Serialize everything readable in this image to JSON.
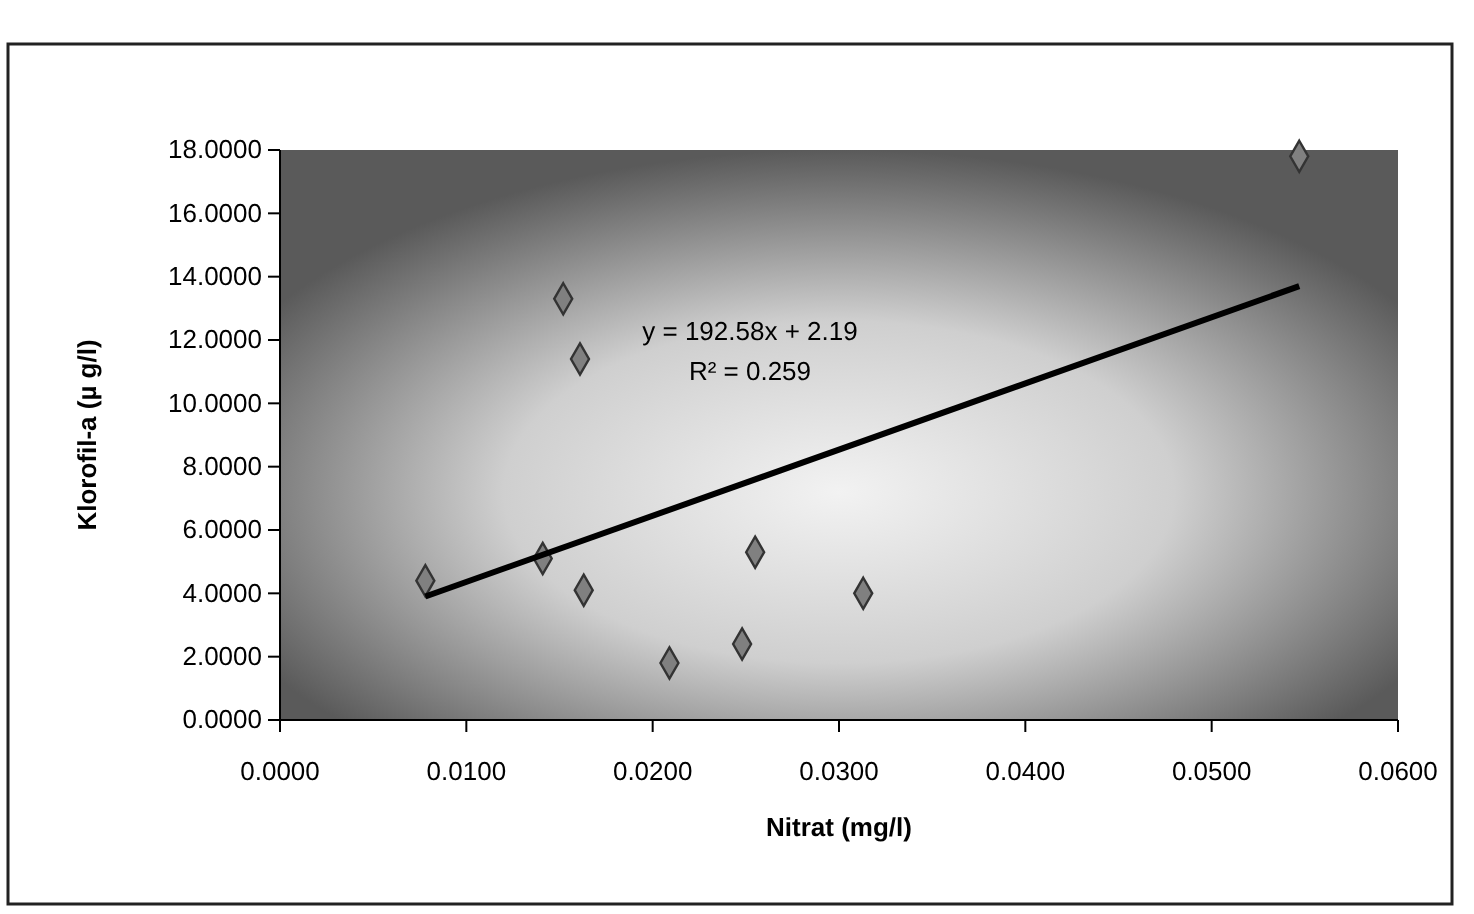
{
  "chart_data": {
    "type": "scatter",
    "xlabel": "Nitrat (mg/l)",
    "ylabel": "Klorofil-a (µ g/l)",
    "annotations": [
      "y = 192.58x + 2.19",
      "R² = 0.259"
    ],
    "xlim": [
      0,
      0.06
    ],
    "ylim": [
      0,
      18
    ],
    "xticks": [
      {
        "value": 0,
        "label": "0.0000"
      },
      {
        "value": 0.01,
        "label": "0.0100"
      },
      {
        "value": 0.02,
        "label": "0.0200"
      },
      {
        "value": 0.03,
        "label": "0.0300"
      },
      {
        "value": 0.04,
        "label": "0.0400"
      },
      {
        "value": 0.05,
        "label": "0.0500"
      },
      {
        "value": 0.06,
        "label": "0.0600"
      }
    ],
    "yticks": [
      {
        "value": 0,
        "label": "0.0000"
      },
      {
        "value": 2,
        "label": "2.0000"
      },
      {
        "value": 4,
        "label": "4.0000"
      },
      {
        "value": 6,
        "label": "6.0000"
      },
      {
        "value": 8,
        "label": "8.0000"
      },
      {
        "value": 10,
        "label": "10.0000"
      },
      {
        "value": 12,
        "label": "12.0000"
      },
      {
        "value": 14,
        "label": "14.0000"
      },
      {
        "value": 16,
        "label": "16.0000"
      },
      {
        "value": 18,
        "label": "18.0000"
      }
    ],
    "grid": false,
    "series": [
      {
        "marker": "diamond",
        "color": "#808080",
        "x": [
          0.0078,
          0.0141,
          0.0152,
          0.0161,
          0.0163,
          0.0209,
          0.0248,
          0.0255,
          0.0313,
          0.0547
        ],
        "values": [
          4.4,
          5.1,
          13.3,
          11.4,
          4.1,
          1.8,
          2.4,
          5.3,
          4.0,
          17.8
        ]
      },
      {
        "type": "line",
        "color": "#000000",
        "line_style": "solid",
        "x": [
          0.0078,
          0.0547
        ],
        "values": [
          3.9,
          13.7
        ]
      }
    ]
  }
}
